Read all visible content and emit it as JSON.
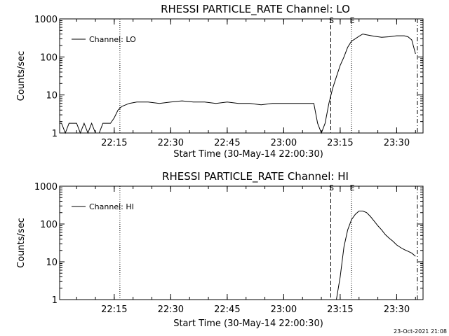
{
  "chart_data": [
    {
      "type": "line",
      "title": "RHESSI PARTICLE_RATE Channel: LO",
      "xlabel": "Start Time (30-May-14 22:00:30)",
      "ylabel": "Counts/sec",
      "y_scale": "log",
      "ylim": [
        1,
        1000
      ],
      "xlim": [
        "22:00:30",
        "23:37:00"
      ],
      "x_ticks": [
        "22:15",
        "22:30",
        "22:45",
        "23:00",
        "23:15",
        "23:30"
      ],
      "y_ticks": [
        "1",
        "10",
        "100",
        "1000"
      ],
      "legend": {
        "position": "top-left",
        "entries": [
          "Channel: LO"
        ]
      },
      "series": [
        {
          "name": "Channel: LO",
          "x": [
            "22:00:30",
            "22:01:00",
            "22:02:00",
            "22:03:00",
            "22:04:00",
            "22:05:00",
            "22:06:00",
            "22:07:00",
            "22:08:00",
            "22:09:00",
            "22:10:00",
            "22:11:00",
            "22:12:00",
            "22:13:00",
            "22:14:00",
            "22:15:00",
            "22:16:00",
            "22:17:00",
            "22:19:00",
            "22:21:00",
            "22:24:00",
            "22:27:00",
            "22:30:00",
            "22:33:00",
            "22:36:00",
            "22:39:00",
            "22:42:00",
            "22:45:00",
            "22:48:00",
            "22:51:00",
            "22:54:00",
            "22:57:00",
            "23:00:00",
            "23:03:00",
            "23:06:00",
            "23:08:00",
            "23:09:00",
            "23:10:00",
            "23:11:00",
            "23:12:00",
            "23:13:00",
            "23:14:00",
            "23:15:00",
            "23:16:00",
            "23:17:00",
            "23:18:00",
            "23:19:00",
            "23:20:00",
            "23:21:00",
            "23:22:00",
            "23:24:00",
            "23:26:00",
            "23:28:00",
            "23:30:00",
            "23:32:00",
            "23:33:00",
            "23:34:00",
            "23:35:00"
          ],
          "values": [
            1.8,
            1.8,
            1.0,
            1.8,
            1.8,
            1.8,
            1.0,
            1.8,
            1.0,
            1.8,
            1.0,
            1.0,
            1.8,
            1.8,
            1.8,
            2.5,
            4.0,
            5.0,
            6.0,
            6.5,
            6.5,
            6.0,
            6.5,
            7.0,
            6.5,
            6.5,
            6.0,
            6.5,
            6.0,
            6.0,
            5.5,
            6.0,
            6.0,
            6.0,
            6.0,
            6.0,
            1.8,
            1.0,
            1.8,
            6.0,
            15,
            30,
            60,
            100,
            180,
            260,
            300,
            350,
            400,
            380,
            350,
            330,
            340,
            360,
            360,
            340,
            280,
            120
          ]
        }
      ],
      "markers": [
        {
          "label": "",
          "time": "22:16:30",
          "style": "dotted"
        },
        {
          "label": "S",
          "time": "23:12:30",
          "style": "dashed"
        },
        {
          "label": "E",
          "time": "23:18:00",
          "style": "dotted"
        },
        {
          "label": "",
          "time": "23:35:30",
          "style": "dash-dot"
        }
      ]
    },
    {
      "type": "line",
      "title": "RHESSI PARTICLE_RATE Channel: HI",
      "xlabel": "Start Time (30-May-14 22:00:30)",
      "ylabel": "Counts/sec",
      "y_scale": "log",
      "ylim": [
        1,
        1000
      ],
      "xlim": [
        "22:00:30",
        "23:37:00"
      ],
      "x_ticks": [
        "22:15",
        "22:30",
        "22:45",
        "23:00",
        "23:15",
        "23:30"
      ],
      "y_ticks": [
        "1",
        "10",
        "100",
        "1000"
      ],
      "legend": {
        "position": "top-left",
        "entries": [
          "Channel: HI"
        ]
      },
      "series": [
        {
          "name": "Channel: HI",
          "x": [
            "23:14:00",
            "23:14:30",
            "23:15:00",
            "23:15:30",
            "23:16:00",
            "23:17:00",
            "23:18:00",
            "23:19:00",
            "23:20:00",
            "23:21:00",
            "23:22:00",
            "23:23:00",
            "23:24:00",
            "23:25:00",
            "23:26:00",
            "23:27:00",
            "23:28:00",
            "23:29:00",
            "23:30:00",
            "23:31:00",
            "23:32:00",
            "23:33:00",
            "23:34:00",
            "23:35:00"
          ],
          "values": [
            1.0,
            2.0,
            4.0,
            10,
            25,
            70,
            130,
            180,
            220,
            220,
            200,
            160,
            120,
            90,
            70,
            52,
            42,
            35,
            28,
            24,
            21,
            19,
            17,
            14
          ]
        }
      ],
      "markers": [
        {
          "label": "",
          "time": "22:16:30",
          "style": "dotted"
        },
        {
          "label": "S",
          "time": "23:12:30",
          "style": "dashed"
        },
        {
          "label": "E",
          "time": "23:18:00",
          "style": "dotted"
        },
        {
          "label": "",
          "time": "23:35:30",
          "style": "dash-dot"
        }
      ]
    }
  ],
  "footer": {
    "timestamp": "23-Oct-2021 21:08"
  }
}
